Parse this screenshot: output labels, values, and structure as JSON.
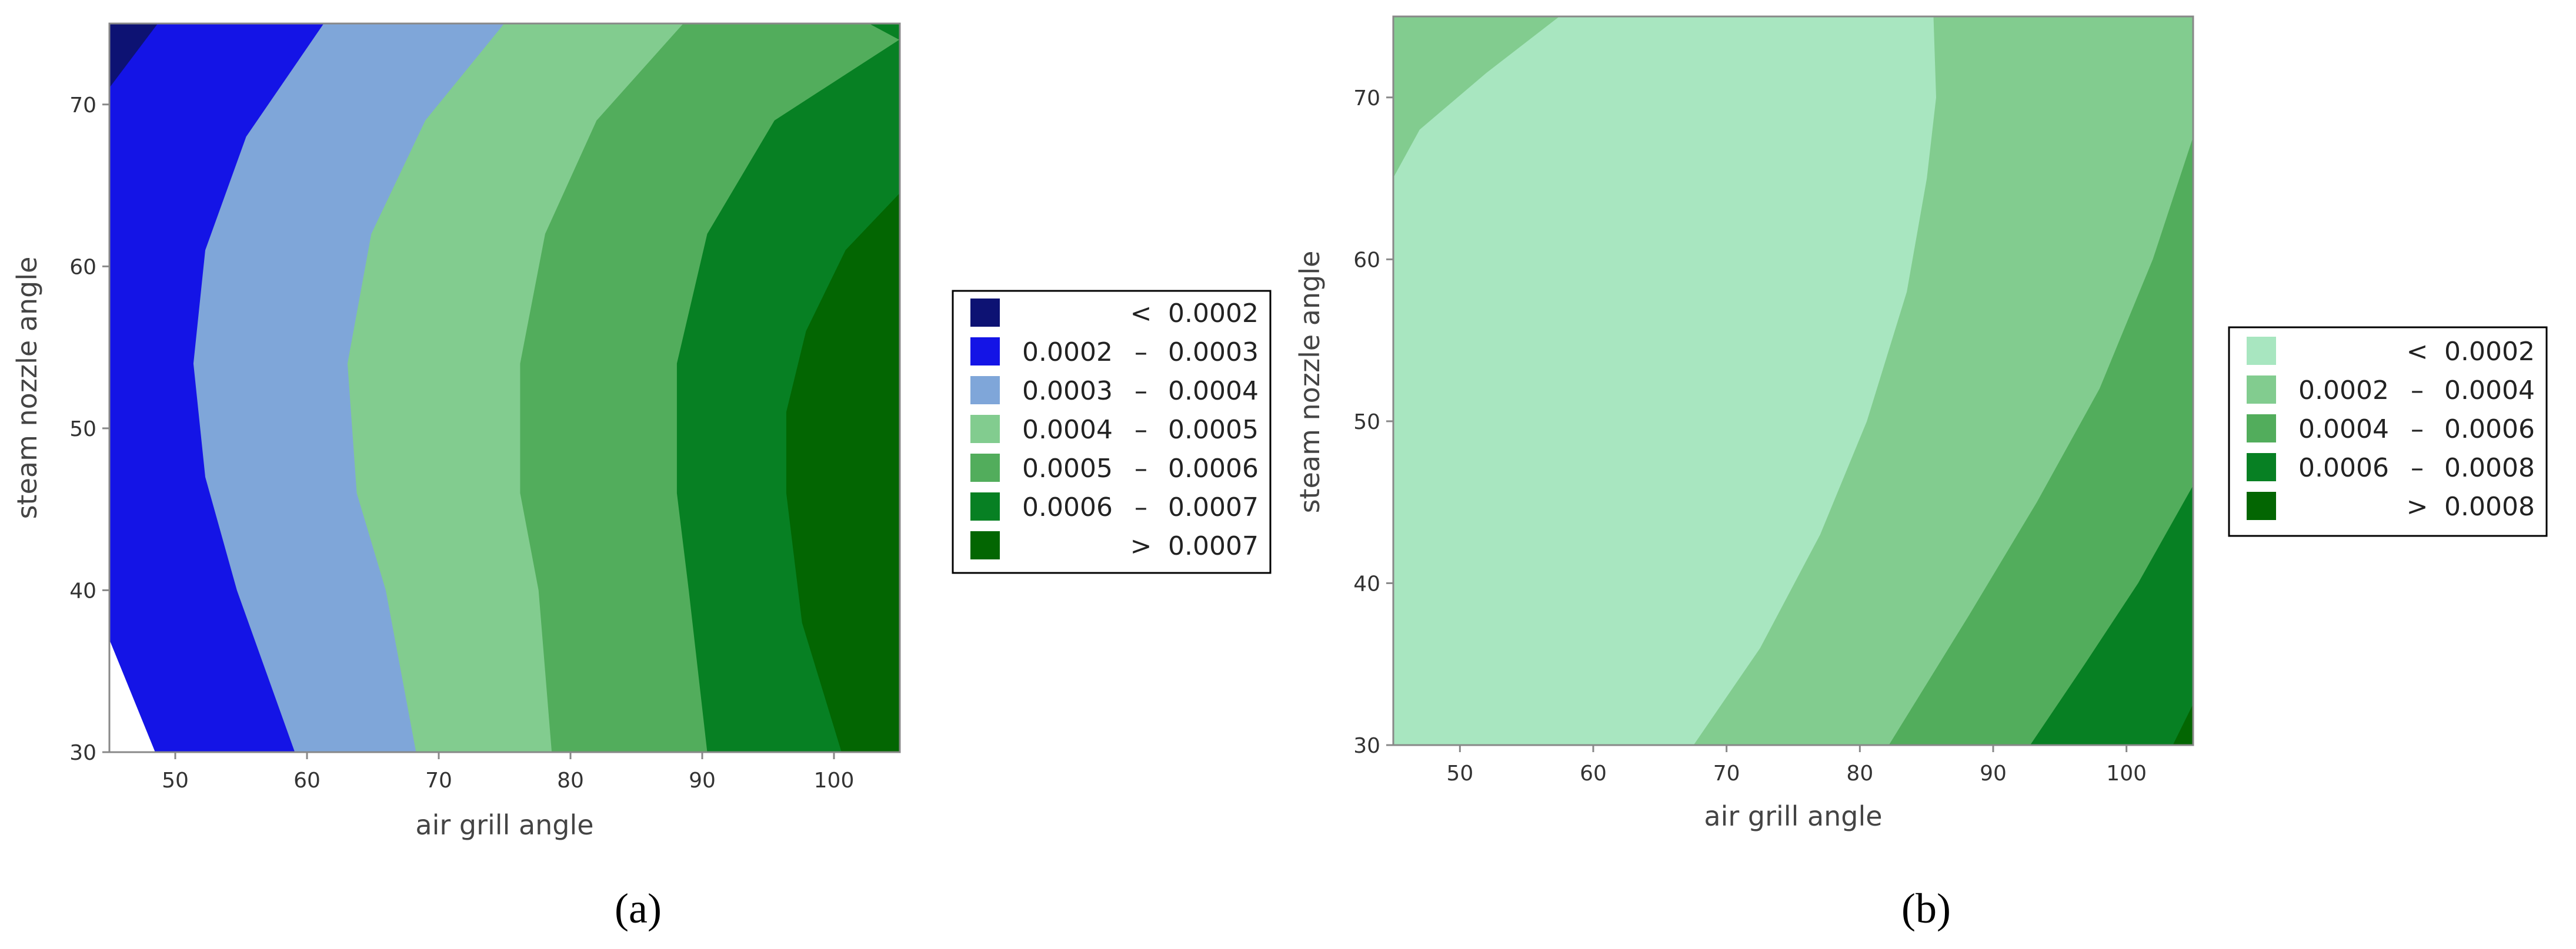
{
  "chart_data": [
    {
      "type": "contour",
      "panel_label": "(a)",
      "xlabel": "air grill angle",
      "ylabel": "steam nozzle angle",
      "xlim": [
        45,
        105
      ],
      "ylim": [
        30,
        75
      ],
      "xticks": [
        "50",
        "60",
        "70",
        "80",
        "90",
        "100"
      ],
      "yticks": [
        "30",
        "40",
        "50",
        "60",
        "70"
      ],
      "levels": [
        {
          "label": [
            "",
            "<",
            "0.0002"
          ],
          "color": "#0d1273"
        },
        {
          "label": [
            "0.0002",
            "–",
            "0.0003"
          ],
          "color": "#1414e6"
        },
        {
          "label": [
            "0.0003",
            "–",
            "0.0004"
          ],
          "color": "#7fa6d9"
        },
        {
          "label": [
            "0.0004",
            "–",
            "0.0005"
          ],
          "color": "#82cc8f"
        },
        {
          "label": [
            "0.0005",
            "–",
            "0.0006"
          ],
          "color": "#52ad5c"
        },
        {
          "label": [
            "0.0006",
            "–",
            "0.0007"
          ],
          "color": "#078023"
        },
        {
          "label": [
            "",
            ">",
            "0.0007"
          ],
          "color": "#036602"
        }
      ],
      "contours": [
        {
          "level": 0,
          "points": [
            [
              45,
              71
            ],
            [
              48.7,
              75
            ],
            [
              45,
              75
            ]
          ]
        },
        {
          "level": 1,
          "points": [
            [
              45,
              71
            ],
            [
              48.7,
              75
            ],
            [
              61.3,
              75
            ],
            [
              55.4,
              68
            ],
            [
              52.3,
              61
            ],
            [
              51.4,
              54
            ],
            [
              52.3,
              47
            ],
            [
              54.7,
              40
            ],
            [
              59.1,
              30
            ],
            [
              48.5,
              30
            ],
            [
              45,
              37
            ]
          ]
        },
        {
          "level": 2,
          "points": [
            [
              61.3,
              75
            ],
            [
              75,
              75
            ],
            [
              69,
              69
            ],
            [
              64.9,
              62
            ],
            [
              63.1,
              54
            ],
            [
              63.8,
              46
            ],
            [
              66,
              40
            ],
            [
              68.3,
              30
            ],
            [
              59.1,
              30
            ],
            [
              54.7,
              40
            ],
            [
              52.3,
              47
            ],
            [
              51.4,
              54
            ],
            [
              52.3,
              61
            ],
            [
              55.4,
              68
            ]
          ]
        },
        {
          "level": 3,
          "points": [
            [
              75,
              75
            ],
            [
              88.6,
              75
            ],
            [
              82,
              69
            ],
            [
              78.1,
              62
            ],
            [
              76.2,
              54
            ],
            [
              76.2,
              46
            ],
            [
              77.6,
              40
            ],
            [
              78.6,
              30
            ],
            [
              68.3,
              30
            ],
            [
              66,
              40
            ],
            [
              63.8,
              46
            ],
            [
              63.1,
              54
            ],
            [
              64.9,
              62
            ],
            [
              69,
              69
            ]
          ]
        },
        {
          "level": 4,
          "points": [
            [
              88.6,
              75
            ],
            [
              102.7,
              75
            ],
            [
              105,
              74
            ],
            [
              95.5,
              69
            ],
            [
              90.4,
              62
            ],
            [
              88.1,
              54
            ],
            [
              88.1,
              46
            ],
            [
              89,
              40
            ],
            [
              90.4,
              30
            ],
            [
              78.6,
              30
            ],
            [
              77.6,
              40
            ],
            [
              76.2,
              46
            ],
            [
              76.2,
              54
            ],
            [
              78.1,
              62
            ],
            [
              82,
              69
            ]
          ]
        },
        {
          "level": 5,
          "points": [
            [
              102.7,
              75
            ],
            [
              105,
              75
            ],
            [
              105,
              64.5
            ],
            [
              100.9,
              61
            ],
            [
              97.9,
              56
            ],
            [
              96.4,
              51
            ],
            [
              96.4,
              46
            ],
            [
              97.6,
              38
            ],
            [
              100.6,
              30
            ],
            [
              90.4,
              30
            ],
            [
              89,
              40
            ],
            [
              88.1,
              46
            ],
            [
              88.1,
              54
            ],
            [
              90.4,
              62
            ],
            [
              95.5,
              69
            ],
            [
              105,
              74
            ]
          ]
        },
        {
          "level": 6,
          "points": [
            [
              105,
              64.5
            ],
            [
              105,
              30
            ],
            [
              100.6,
              30
            ],
            [
              97.6,
              38
            ],
            [
              96.4,
              46
            ],
            [
              96.4,
              51
            ],
            [
              97.9,
              56
            ],
            [
              100.9,
              61
            ]
          ]
        }
      ]
    },
    {
      "type": "contour",
      "panel_label": "(b)",
      "xlabel": "air grill angle",
      "ylabel": "steam nozzle angle",
      "xlim": [
        45,
        105
      ],
      "ylim": [
        30,
        75
      ],
      "xticks": [
        "50",
        "60",
        "70",
        "80",
        "90",
        "100"
      ],
      "yticks": [
        "30",
        "40",
        "50",
        "60",
        "70"
      ],
      "levels": [
        {
          "label": [
            "",
            "<",
            "0.0002"
          ],
          "color": "#a8e6c0"
        },
        {
          "label": [
            "0.0002",
            "–",
            "0.0004"
          ],
          "color": "#82cc8f"
        },
        {
          "label": [
            "0.0004",
            "–",
            "0.0006"
          ],
          "color": "#52ad5c"
        },
        {
          "label": [
            "0.0006",
            "–",
            "0.0008"
          ],
          "color": "#078023"
        },
        {
          "label": [
            "",
            ">",
            "0.0008"
          ],
          "color": "#036602"
        }
      ],
      "contours": [
        {
          "level": 1,
          "points": [
            [
              45,
              30
            ],
            [
              105,
              30
            ],
            [
              105,
              75
            ],
            [
              45,
              75
            ]
          ]
        },
        {
          "level": 0,
          "points": [
            [
              45,
              65
            ],
            [
              47,
              68
            ],
            [
              52,
              71.5
            ],
            [
              57.5,
              75
            ],
            [
              85.5,
              75
            ],
            [
              85.7,
              70
            ],
            [
              85,
              65
            ],
            [
              83.5,
              58
            ],
            [
              80.5,
              50
            ],
            [
              77,
              43
            ],
            [
              72.5,
              36
            ],
            [
              67.5,
              30
            ],
            [
              45,
              30
            ]
          ]
        },
        {
          "level": 2,
          "points": [
            [
              105,
              67.5
            ],
            [
              102,
              60
            ],
            [
              98,
              52
            ],
            [
              93.3,
              45
            ],
            [
              88.2,
              38
            ],
            [
              82.2,
              30
            ],
            [
              105,
              30
            ]
          ]
        },
        {
          "level": 3,
          "points": [
            [
              105,
              46
            ],
            [
              100.9,
              40
            ],
            [
              96.9,
              35
            ],
            [
              92.8,
              30
            ],
            [
              105,
              30
            ]
          ]
        },
        {
          "level": 4,
          "points": [
            [
              105,
              32.5
            ],
            [
              103.5,
              30
            ],
            [
              105,
              30
            ]
          ]
        }
      ]
    }
  ]
}
